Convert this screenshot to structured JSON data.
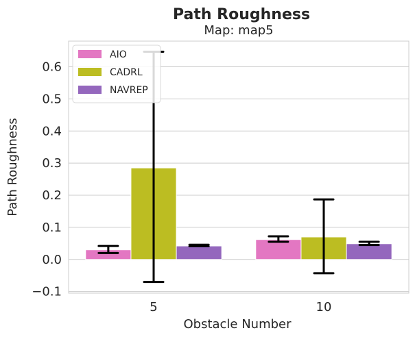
{
  "chart_data": {
    "type": "bar",
    "title": "Path Roughness",
    "subtitle": "Map: map5",
    "xlabel": "Obstacle Number",
    "ylabel": "Path Roughness",
    "categories": [
      "5",
      "10"
    ],
    "ylim": [
      -0.105,
      0.68
    ],
    "yticks": [
      "−0.1",
      "0.0",
      "0.1",
      "0.2",
      "0.3",
      "0.4",
      "0.5",
      "0.6"
    ],
    "ytick_values": [
      -0.1,
      0.0,
      0.1,
      0.2,
      0.3,
      0.4,
      0.5,
      0.6
    ],
    "grid": true,
    "legend_position": "top-left",
    "series": [
      {
        "name": "AIO",
        "color": "#e377c2",
        "values": [
          0.03,
          0.062
        ],
        "err_low": [
          0.02,
          0.055
        ],
        "err_high": [
          0.042,
          0.072
        ]
      },
      {
        "name": "CADRL",
        "color": "#bcbd22",
        "values": [
          0.285,
          0.07
        ],
        "err_low": [
          -0.07,
          -0.043
        ],
        "err_high": [
          0.647,
          0.187
        ]
      },
      {
        "name": "NAVREP",
        "color": "#9467bd",
        "values": [
          0.042,
          0.049
        ],
        "err_low": [
          0.041,
          0.045
        ],
        "err_high": [
          0.046,
          0.055
        ]
      }
    ]
  }
}
